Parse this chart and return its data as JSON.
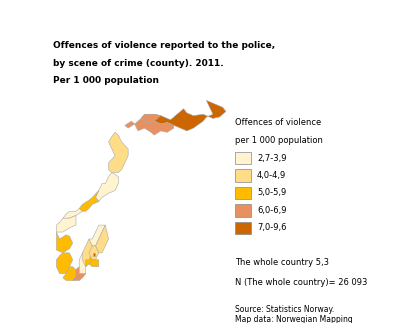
{
  "title_line1": "Offences of violence reported to the police,",
  "title_line2": "by scene of crime (county). 2011.",
  "title_line3": "Per 1 000 population",
  "legend_items": [
    {
      "label": "2,7-3,9",
      "color": "#FFF3D0"
    },
    {
      "label": "4,0-4,9",
      "color": "#FFDD88"
    },
    {
      "label": "5,0-5,9",
      "color": "#FFBB00"
    },
    {
      "label": "6,0-6,9",
      "color": "#E89060"
    },
    {
      "label": "7,0-9,6",
      "color": "#CC6600"
    }
  ],
  "whole_country_text": "The whole country 5,3",
  "n_text": "N (The whole country)= 26 093",
  "source_text": "Source: Statistics Norway.\nMap data: Norwegian Mapping\nAuthority.",
  "background_color": "#ffffff",
  "county_colors": {
    "Østfold": "#FFBB00",
    "Akershus": "#FFDD88",
    "Oslo": "#CC6600",
    "Hedmark": "#FFDD88",
    "Oppland": "#FFF3D0",
    "Buskerud": "#FFDD88",
    "Vestfold": "#FFBB00",
    "Telemark": "#FFF3D0",
    "Aust-Agder": "#E89060",
    "Vest-Agder": "#FFBB00",
    "Rogaland": "#FFBB00",
    "Hordaland": "#FFBB00",
    "Sogn og Fjordane": "#FFF3D0",
    "Møre og Romsdal": "#FFF3D0",
    "Sør-Trøndelag": "#FFBB00",
    "Nord-Trøndelag": "#FFF3D0",
    "Nordland": "#FFDD88",
    "Troms": "#E89060",
    "Finnmark": "#CC6600"
  }
}
